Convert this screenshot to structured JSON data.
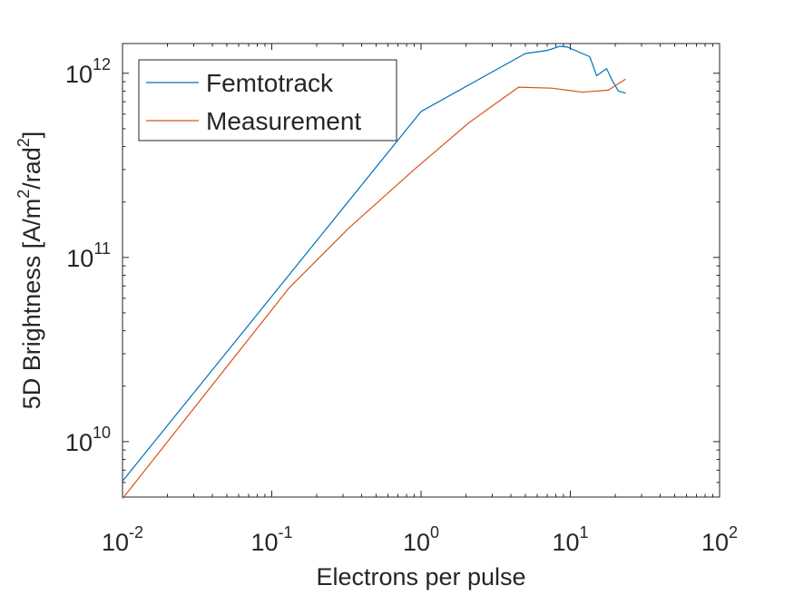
{
  "chart_data": {
    "type": "line",
    "xscale": "log",
    "yscale": "log",
    "xlim": [
      0.01,
      100
    ],
    "ylim": [
      5000000000,
      1450000000000
    ],
    "xlabel": "Electrons per pulse",
    "ylabel_main": "5D Brightness [A/m",
    "ylabel_sup1": "2",
    "ylabel_mid": "/rad",
    "ylabel_sup2": "2",
    "ylabel_end": "]",
    "x_ticks": [
      {
        "base": "10",
        "exp": "-2",
        "value": 0.01
      },
      {
        "base": "10",
        "exp": "-1",
        "value": 0.1
      },
      {
        "base": "10",
        "exp": "0",
        "value": 1
      },
      {
        "base": "10",
        "exp": "1",
        "value": 10
      },
      {
        "base": "10",
        "exp": "2",
        "value": 100
      }
    ],
    "y_ticks": [
      {
        "base": "10",
        "exp": "10",
        "value": 10000000000
      },
      {
        "base": "10",
        "exp": "11",
        "value": 100000000000
      },
      {
        "base": "10",
        "exp": "12",
        "value": 1000000000000
      }
    ],
    "legend_location": "top-left",
    "series": [
      {
        "name": "Femtotrack",
        "color": "#0072BD",
        "x": [
          0.01,
          1.0,
          5.0,
          7.0,
          8.5,
          9.5,
          13.5,
          15.0,
          17.5,
          19.0,
          21.0,
          23.5
        ],
        "y": [
          6100000000,
          620000000000,
          1280000000000,
          1330000000000,
          1400000000000,
          1390000000000,
          1230000000000,
          970000000000,
          1060000000000,
          920000000000,
          800000000000,
          780000000000
        ]
      },
      {
        "name": "Measurement",
        "color": "#D95319",
        "x": [
          0.01,
          0.13,
          0.33,
          0.9,
          2.1,
          4.5,
          7.5,
          12.0,
          18.0,
          23.5
        ],
        "y": [
          4900000000,
          68000000000,
          145000000000,
          300000000000,
          540000000000,
          840000000000,
          830000000000,
          790000000000,
          810000000000,
          930000000000
        ]
      }
    ]
  }
}
